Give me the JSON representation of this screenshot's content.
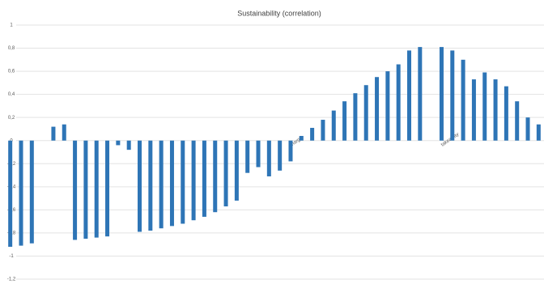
{
  "chart_data": {
    "type": "bar",
    "title": "Sustainability (correlation)",
    "categories": [
      null,
      null,
      null,
      null,
      null,
      null,
      null,
      null,
      null,
      null,
      null,
      null,
      null,
      null,
      null,
      null,
      null,
      null,
      null,
      null,
      null,
      null,
      null,
      null,
      null,
      null,
      "margin",
      null,
      null,
      null,
      null,
      null,
      null,
      null,
      null,
      null,
      null,
      null,
      null,
      null,
      "takeaway",
      null,
      null,
      null,
      null,
      null,
      null,
      null,
      null,
      null
    ],
    "values": [
      -0.92,
      -0.91,
      -0.89,
      null,
      0.12,
      0.14,
      -0.86,
      -0.85,
      -0.84,
      -0.83,
      -0.04,
      -0.08,
      -0.79,
      -0.78,
      -0.76,
      -0.74,
      -0.72,
      -0.69,
      -0.66,
      -0.62,
      -0.57,
      -0.52,
      -0.28,
      -0.23,
      -0.31,
      -0.26,
      -0.18,
      0.04,
      0.11,
      0.18,
      0.26,
      0.34,
      0.41,
      0.48,
      0.55,
      0.6,
      0.66,
      0.78,
      0.81,
      null,
      0.81,
      0.78,
      0.7,
      0.53,
      0.59,
      0.53,
      0.47,
      0.34,
      0.2,
      0.14
    ],
    "color": "#2e75b6",
    "ylim": [
      -1.2,
      1
    ],
    "yticks": [
      {
        "value": -1.2,
        "label": "-1,2"
      },
      {
        "value": -1,
        "label": "-1"
      },
      {
        "value": -0.8,
        "label": "-0,8"
      },
      {
        "value": -0.6,
        "label": "-0,6"
      },
      {
        "value": -0.4,
        "label": "-0,4"
      },
      {
        "value": -0.2,
        "label": "-0,2"
      },
      0,
      {
        "value": 0.2,
        "label": "0,2"
      },
      {
        "value": 0.4,
        "label": "0,4"
      },
      {
        "value": 0.6,
        "label": "0,6"
      },
      {
        "value": 0.8,
        "label": "0,8"
      },
      1
    ],
    "grid": true
  }
}
